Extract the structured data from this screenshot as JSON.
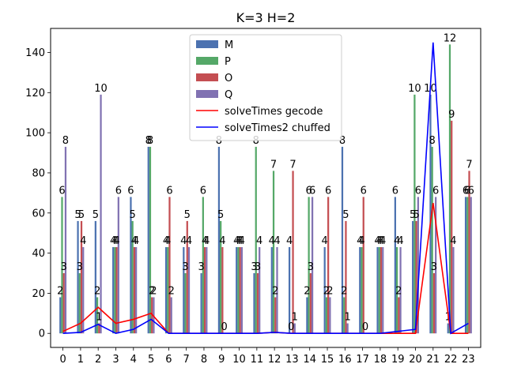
{
  "chart_data": {
    "type": "bar",
    "title": "K=3 H=2",
    "xlabel": "",
    "ylabel": "",
    "categories": [
      "0",
      "1",
      "2",
      "3",
      "4",
      "5",
      "6",
      "7",
      "8",
      "9",
      "10",
      "11",
      "12",
      "13",
      "14",
      "15",
      "16",
      "17",
      "18",
      "19",
      "20",
      "21",
      "22",
      "23"
    ],
    "ylim": [
      -7,
      152
    ],
    "xlim": [
      -0.7,
      23.7
    ],
    "yticks": [
      0,
      20,
      40,
      60,
      80,
      100,
      120,
      140
    ],
    "legend_position": "upper center",
    "grid": false,
    "bar_series": [
      {
        "name": "M",
        "color": "#4c72b0",
        "values": [
          18,
          56,
          56,
          43,
          68,
          93,
          43,
          43,
          30,
          93,
          43,
          30,
          43,
          43,
          18,
          43,
          93,
          43,
          43,
          68,
          56,
          119,
          5,
          68
        ],
        "labels": [
          "2",
          "5",
          "5",
          "4",
          "6",
          "8",
          "4",
          "4",
          "3",
          "8",
          "4",
          "3",
          "4",
          "4",
          "2",
          "4",
          "8",
          "4",
          "4",
          "6",
          "5",
          "10",
          "1",
          "6"
        ]
      },
      {
        "name": "P",
        "color": "#55a868",
        "values": [
          68,
          30,
          18,
          43,
          56,
          93,
          43,
          30,
          68,
          56,
          43,
          93,
          81,
          0,
          68,
          18,
          18,
          43,
          43,
          43,
          119,
          93,
          144,
          68
        ],
        "labels": [
          "6",
          "3",
          "2",
          "4",
          "5",
          "8",
          "4",
          "3",
          "6",
          "5",
          "4",
          "8",
          "7",
          "0",
          "6",
          "2",
          "2",
          "4",
          "4",
          "4",
          "10",
          "8",
          "12",
          "6"
        ]
      },
      {
        "name": "O",
        "color": "#c44e52",
        "values": [
          30,
          56,
          5,
          43,
          43,
          18,
          68,
          56,
          43,
          43,
          43,
          30,
          18,
          81,
          30,
          68,
          56,
          68,
          43,
          18,
          56,
          30,
          106,
          81
        ],
        "labels": [
          "3",
          "5",
          "1",
          "4",
          "4",
          "2",
          "6",
          "5",
          "4",
          "4",
          "4",
          "3",
          "2",
          "7",
          "3",
          "6",
          "5",
          "6",
          "4",
          "2",
          "5",
          "3",
          "9",
          "7"
        ]
      },
      {
        "name": "Q",
        "color": "#8172b2",
        "values": [
          93,
          43,
          119,
          68,
          43,
          18,
          18,
          43,
          43,
          0,
          43,
          43,
          43,
          5,
          68,
          18,
          5,
          0,
          43,
          43,
          68,
          68,
          43,
          68
        ],
        "labels": [
          "8",
          "4",
          "10",
          "6",
          "4",
          "2",
          "2",
          "4",
          "4",
          "0",
          "4",
          "4",
          "4",
          "1",
          "6",
          "2",
          "1",
          "0",
          "4",
          "4",
          "6",
          "6",
          "4",
          "6"
        ]
      }
    ],
    "line_series": [
      {
        "name": "solveTimes gecode",
        "color": "#ff0000",
        "values": [
          1,
          5,
          13,
          5,
          7,
          10,
          0,
          0,
          0,
          0,
          0,
          0,
          0.5,
          0,
          0,
          0,
          0,
          0,
          0,
          0,
          0,
          65,
          0,
          0
        ]
      },
      {
        "name": "solveTimes2 chuffed",
        "color": "#0000ff",
        "values": [
          0,
          0.5,
          4.5,
          0,
          2,
          7,
          0,
          0,
          0,
          0,
          0,
          0,
          0.5,
          0,
          0,
          0,
          0,
          0,
          0,
          1,
          2,
          145,
          0,
          5
        ]
      }
    ]
  }
}
